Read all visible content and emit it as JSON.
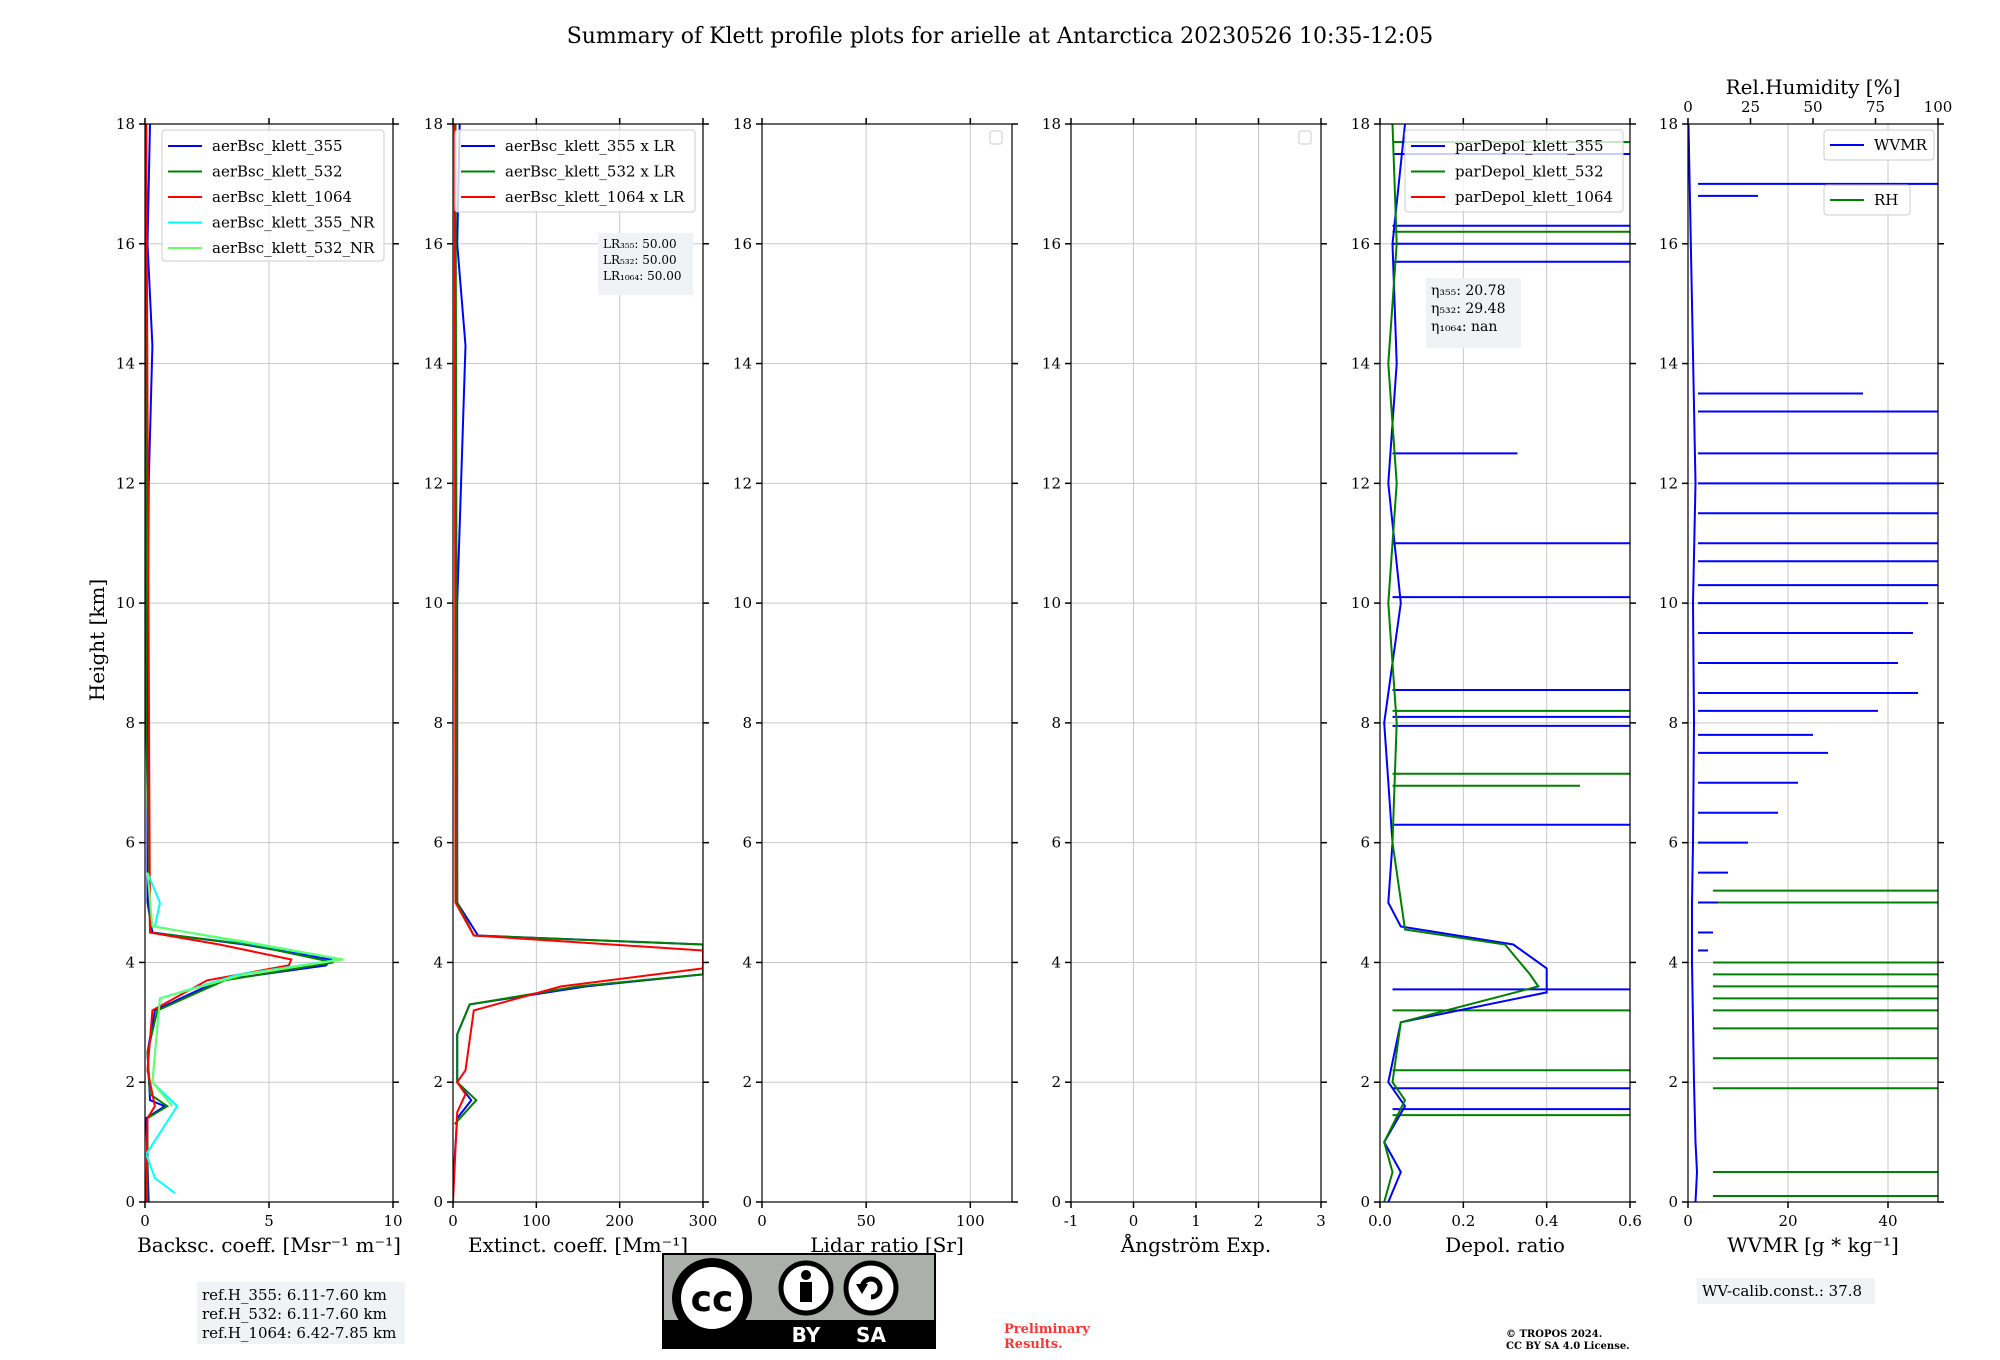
{
  "figure": {
    "title": "Summary of Klett profile plots for arielle at Antarctica 20230526 10:35-12:05",
    "ylabel": "Height [km]",
    "y_range": [
      0,
      18
    ],
    "y_ticks": [
      "0",
      "2",
      "4",
      "6",
      "8",
      "10",
      "12",
      "14",
      "16",
      "18"
    ]
  },
  "colors": {
    "c355": "#0000ff",
    "c532": "#008000",
    "c1064": "#ff0000",
    "c355nr": "#00ffff",
    "c532nr": "#66ff66",
    "grid": "#c8c8c8",
    "info_box": "#f0f2f6",
    "preliminary": "#ff3333"
  },
  "chart_data": [
    {
      "id": "backscatter",
      "type": "line",
      "xlabel": "Backsc. coeff. [Msr⁻¹ m⁻¹]",
      "xlim": [
        0,
        10
      ],
      "xticks": [
        0,
        5,
        10
      ],
      "legend": "top-right",
      "series": [
        {
          "name": "aerBsc_klett_355",
          "color": "#0000ff",
          "points": [
            [
              0.15,
              0.0
            ],
            [
              0.05,
              1.4
            ],
            [
              0.8,
              1.6
            ],
            [
              0.2,
              1.7
            ],
            [
              0.1,
              2.5
            ],
            [
              0.4,
              3.2
            ],
            [
              3.0,
              3.7
            ],
            [
              7.3,
              3.95
            ],
            [
              7.5,
              4.05
            ],
            [
              4.0,
              4.3
            ],
            [
              0.3,
              4.5
            ],
            [
              0.1,
              5.0
            ],
            [
              0.1,
              8.0
            ],
            [
              0.15,
              12.0
            ],
            [
              0.3,
              14.3
            ],
            [
              0.1,
              16.0
            ],
            [
              0.2,
              18.0
            ]
          ]
        },
        {
          "name": "aerBsc_klett_532",
          "color": "#008000",
          "points": [
            [
              0.1,
              0.0
            ],
            [
              0.1,
              1.4
            ],
            [
              0.9,
              1.6
            ],
            [
              0.2,
              1.8
            ],
            [
              0.1,
              2.5
            ],
            [
              0.5,
              3.2
            ],
            [
              3.2,
              3.7
            ],
            [
              7.6,
              4.0
            ],
            [
              4.2,
              4.3
            ],
            [
              0.2,
              4.5
            ],
            [
              0.05,
              8.0
            ],
            [
              0.05,
              18.0
            ]
          ]
        },
        {
          "name": "aerBsc_klett_1064",
          "color": "#ff0000",
          "points": [
            [
              0.05,
              0.0
            ],
            [
              0.1,
              1.4
            ],
            [
              0.4,
              1.6
            ],
            [
              0.1,
              2.2
            ],
            [
              0.3,
              3.2
            ],
            [
              2.5,
              3.7
            ],
            [
              5.8,
              3.95
            ],
            [
              5.9,
              4.05
            ],
            [
              3.0,
              4.3
            ],
            [
              0.2,
              4.5
            ],
            [
              0.05,
              18.0
            ]
          ]
        },
        {
          "name": "aerBsc_klett_355_NR",
          "color": "#00ffff",
          "points": [
            [
              1.2,
              0.15
            ],
            [
              0.4,
              0.4
            ],
            [
              0.05,
              0.8
            ],
            [
              1.3,
              1.6
            ],
            [
              0.3,
              2.0
            ],
            [
              0.6,
              3.4
            ],
            [
              3.8,
              3.8
            ],
            [
              7.9,
              4.05
            ],
            [
              3.8,
              4.35
            ],
            [
              0.4,
              4.6
            ],
            [
              0.6,
              5.0
            ],
            [
              0.1,
              5.5
            ]
          ]
        },
        {
          "name": "aerBsc_klett_532_NR",
          "color": "#66ff66",
          "points": [
            [
              1.1,
              1.6
            ],
            [
              0.3,
              2.0
            ],
            [
              0.6,
              3.4
            ],
            [
              4.0,
              3.8
            ],
            [
              8.0,
              4.05
            ],
            [
              4.0,
              4.35
            ],
            [
              0.3,
              4.6
            ],
            [
              0.1,
              5.5
            ]
          ]
        }
      ],
      "info_box": [
        "ref.H_355: 6.11-7.60 km",
        "ref.H_532: 6.11-7.60 km",
        "ref.H_1064: 6.42-7.85 km"
      ]
    },
    {
      "id": "extinction",
      "type": "line",
      "xlabel": "Extinct. coeff. [Mm⁻¹]",
      "xlim": [
        0,
        300
      ],
      "xticks": [
        0,
        100,
        200,
        300
      ],
      "legend": "top-right",
      "series": [
        {
          "name": "aerBsc_klett_355 x LR",
          "color": "#0000ff",
          "points": [
            [
              0,
              0.3
            ],
            [
              5,
              1.4
            ],
            [
              22,
              1.7
            ],
            [
              5,
              2.0
            ],
            [
              5,
              2.8
            ],
            [
              20,
              3.3
            ],
            [
              160,
              3.6
            ],
            [
              300,
              3.8
            ],
            [
              300,
              4.3
            ],
            [
              30,
              4.45
            ],
            [
              5,
              5.0
            ],
            [
              5,
              10.0
            ],
            [
              15,
              14.3
            ],
            [
              5,
              16.0
            ],
            [
              8,
              18.0
            ]
          ]
        },
        {
          "name": "aerBsc_klett_532 x LR",
          "color": "#008000",
          "points": [
            [
              2,
              1.3
            ],
            [
              28,
              1.7
            ],
            [
              5,
              2.0
            ],
            [
              5,
              2.8
            ],
            [
              20,
              3.3
            ],
            [
              150,
              3.6
            ],
            [
              300,
              3.8
            ],
            [
              300,
              4.3
            ],
            [
              25,
              4.45
            ],
            [
              5,
              5.0
            ],
            [
              3,
              18.0
            ]
          ]
        },
        {
          "name": "aerBsc_klett_1064 x LR",
          "color": "#ff0000",
          "points": [
            [
              0,
              0.0
            ],
            [
              5,
              1.5
            ],
            [
              15,
              1.8
            ],
            [
              5,
              2.0
            ],
            [
              15,
              2.2
            ],
            [
              25,
              3.2
            ],
            [
              130,
              3.6
            ],
            [
              300,
              3.9
            ],
            [
              300,
              4.2
            ],
            [
              25,
              4.45
            ],
            [
              3,
              5.0
            ],
            [
              2,
              18.0
            ]
          ]
        }
      ],
      "info_box": [
        "LR₃₅₅: 50.00",
        "LR₅₃₂: 50.00",
        "LR₁₀₆₄: 50.00"
      ]
    },
    {
      "id": "lidar_ratio",
      "type": "line",
      "xlabel": "Lidar ratio [Sr]",
      "xlim": [
        0,
        120
      ],
      "xticks": [
        0,
        50,
        100
      ],
      "legend": "top-right",
      "series": []
    },
    {
      "id": "angstrom",
      "type": "line",
      "xlabel": "Ångström Exp.",
      "xlim": [
        -1,
        3
      ],
      "xticks": [
        -1,
        0,
        1,
        2,
        3
      ],
      "legend": "top-right",
      "series": []
    },
    {
      "id": "depol",
      "type": "line",
      "xlabel": "Depol. ratio",
      "xlim": [
        0,
        0.6
      ],
      "xticks": [
        0.0,
        0.2,
        0.4,
        0.6
      ],
      "legend": "top-right",
      "series": [
        {
          "name": "parDepol_klett_355",
          "color": "#0000ff",
          "points": [
            [
              0.02,
              0.0
            ],
            [
              0.05,
              0.5
            ],
            [
              0.01,
              1.0
            ],
            [
              0.06,
              1.6
            ],
            [
              0.02,
              2.0
            ],
            [
              0.05,
              3.0
            ],
            [
              0.4,
              3.5
            ],
            [
              0.4,
              3.9
            ],
            [
              0.32,
              4.3
            ],
            [
              0.05,
              4.6
            ],
            [
              0.02,
              5.0
            ],
            [
              0.03,
              6.0
            ],
            [
              0.01,
              8.0
            ],
            [
              0.05,
              10.0
            ],
            [
              0.02,
              12.0
            ],
            [
              0.04,
              14.0
            ],
            [
              0.03,
              16.0
            ],
            [
              0.06,
              18.0
            ]
          ]
        },
        {
          "name": "parDepol_klett_532",
          "color": "#008000",
          "points": [
            [
              0.01,
              0.0
            ],
            [
              0.03,
              0.5
            ],
            [
              0.01,
              1.0
            ],
            [
              0.06,
              1.7
            ],
            [
              0.03,
              2.0
            ],
            [
              0.05,
              3.0
            ],
            [
              0.38,
              3.6
            ],
            [
              0.36,
              3.8
            ],
            [
              0.3,
              4.3
            ],
            [
              0.06,
              4.55
            ],
            [
              0.03,
              6.0
            ],
            [
              0.04,
              8.0
            ],
            [
              0.02,
              10.0
            ],
            [
              0.04,
              12.0
            ],
            [
              0.02,
              14.0
            ],
            [
              0.04,
              16.0
            ],
            [
              0.03,
              18.0
            ]
          ]
        },
        {
          "name": "parDepol_klett_1064",
          "color": "#ff0000",
          "points": []
        }
      ],
      "spikes_355": [
        [
          1.55,
          0.6
        ],
        [
          1.9,
          0.6
        ],
        [
          3.55,
          0.6
        ],
        [
          6.3,
          0.6
        ],
        [
          7.95,
          0.6
        ],
        [
          8.1,
          0.6
        ],
        [
          8.55,
          0.6
        ],
        [
          10.1,
          0.6
        ],
        [
          11.0,
          0.6
        ],
        [
          12.5,
          0.33
        ],
        [
          15.7,
          0.6
        ],
        [
          16.0,
          0.6
        ],
        [
          16.3,
          0.6
        ],
        [
          17.5,
          0.6
        ]
      ],
      "spikes_532": [
        [
          1.45,
          0.6
        ],
        [
          2.2,
          0.6
        ],
        [
          3.2,
          0.6
        ],
        [
          6.95,
          0.48
        ],
        [
          7.15,
          0.6
        ],
        [
          8.2,
          0.6
        ],
        [
          16.2,
          0.6
        ],
        [
          17.7,
          0.6
        ]
      ],
      "info_box": [
        "η₃₅₅: 20.78",
        "η₅₃₂: 29.48",
        "η₁₀₆₄: nan"
      ]
    },
    {
      "id": "wvmr",
      "type": "line",
      "xlabel": "WVMR [g * kg⁻¹]",
      "xlim": [
        0,
        50
      ],
      "xticks": [
        0,
        20,
        40
      ],
      "top_xlabel": "Rel.Humidity [%]",
      "top_xticks": [
        0,
        25,
        50,
        75,
        100
      ],
      "legend": "top-right",
      "series": [
        {
          "name": "WVMR",
          "color": "#0000ff",
          "points": [
            [
              1.5,
              0.0
            ],
            [
              1.8,
              0.5
            ],
            [
              1.5,
              1.0
            ],
            [
              1.2,
              2.0
            ],
            [
              1.0,
              3.0
            ],
            [
              0.8,
              4.0
            ],
            [
              0.8,
              5.0
            ],
            [
              1.0,
              6.0
            ],
            [
              1.2,
              8.0
            ],
            [
              1.0,
              10.0
            ],
            [
              1.5,
              12.0
            ],
            [
              0.1,
              18.0
            ]
          ]
        },
        {
          "name": "RH",
          "color": "#008000",
          "points": []
        }
      ],
      "spikes_wvmr": [
        [
          17.0,
          50
        ],
        [
          16.8,
          14
        ],
        [
          13.5,
          35
        ],
        [
          13.2,
          50
        ],
        [
          12.5,
          50
        ],
        [
          12.0,
          50
        ],
        [
          11.5,
          50
        ],
        [
          11.0,
          50
        ],
        [
          10.7,
          50
        ],
        [
          10.3,
          50
        ],
        [
          10.0,
          48
        ],
        [
          9.5,
          45
        ],
        [
          9.0,
          42
        ],
        [
          8.5,
          46
        ],
        [
          8.2,
          38
        ],
        [
          7.8,
          25
        ],
        [
          7.5,
          28
        ],
        [
          7.0,
          22
        ],
        [
          6.5,
          18
        ],
        [
          6.0,
          12
        ],
        [
          5.5,
          8
        ],
        [
          5.0,
          6
        ],
        [
          4.5,
          5
        ],
        [
          4.2,
          4
        ]
      ],
      "spikes_rh": [
        [
          0.1,
          50
        ],
        [
          0.5,
          50
        ],
        [
          1.9,
          50
        ],
        [
          2.4,
          50
        ],
        [
          2.9,
          50
        ],
        [
          3.2,
          50
        ],
        [
          3.4,
          50
        ],
        [
          3.6,
          50
        ],
        [
          3.8,
          50
        ],
        [
          4.0,
          50
        ],
        [
          5.0,
          50
        ],
        [
          5.2,
          50
        ]
      ],
      "info_box": [
        "WV-calib.const.: 37.8"
      ]
    }
  ],
  "footer": {
    "cc_main": "cc",
    "cc_by": "BY",
    "cc_sa": "SA",
    "preliminary_line1": "Preliminary",
    "preliminary_line2": "Results.",
    "copyright_line1": "© TROPOS 2024.",
    "copyright_line2": "CC BY SA 4.0 License."
  }
}
